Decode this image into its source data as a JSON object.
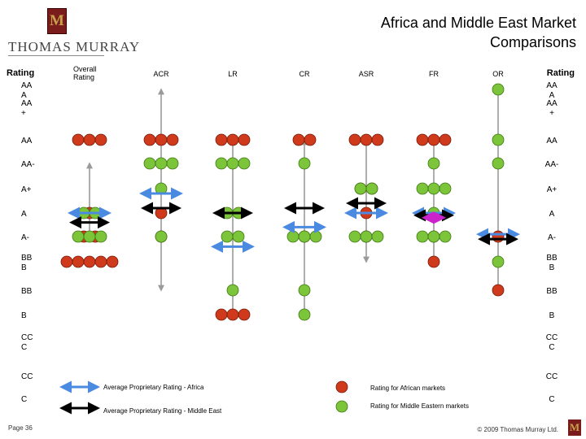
{
  "brand": {
    "monogram": "M",
    "name": "THOMAS MURRAY"
  },
  "header": {
    "title": "Africa and Middle East Market\nComparisons"
  },
  "footer": {
    "page": "Page 36",
    "copyright": "© 2009 Thomas Murray Ltd."
  },
  "colors": {
    "african": "#d03a1c",
    "middle_east": "#7cc43a",
    "africa_avg": "#4a8ae0",
    "me_avg": "#000000",
    "magenta": "#cc22cc",
    "gray_line": "#9a9a9a"
  },
  "chart_data": {
    "type": "scatter",
    "title": "Africa and Middle East Market Comparisons",
    "ylabel": "Rating",
    "categories": [
      {
        "label": "Overall\nRating"
      },
      {
        "label": "ACR"
      },
      {
        "label": "LR"
      },
      {
        "label": "CR"
      },
      {
        "label": "ASR"
      },
      {
        "label": "FR"
      },
      {
        "label": "OR"
      }
    ],
    "left_axis_header": "Rating",
    "right_axis_header": "Rating",
    "left_levels": [
      "AA\nA",
      "AA\n+",
      "AA",
      "AA-",
      "A+",
      "A",
      "A-",
      "BB\nB",
      "BB",
      "B",
      "CC\nC",
      "CC",
      "C"
    ],
    "right_levels": [
      "AA\nA",
      "AA\n+",
      "AA",
      "AA-",
      "A+",
      "A",
      "A-",
      "BB\nB",
      "BB",
      "B",
      "CC\nC",
      "CC",
      "C"
    ],
    "series": [
      {
        "name": "Rating for African markets",
        "points": [
          {
            "cat": 0,
            "level": 2,
            "count": 3
          },
          {
            "cat": 0,
            "level": 5,
            "count": 1
          },
          {
            "cat": 0,
            "level": 6,
            "count": 2
          },
          {
            "cat": 0,
            "level": 7,
            "count": 5
          },
          {
            "cat": 1,
            "level": 2,
            "count": 3
          },
          {
            "cat": 1,
            "level": 5,
            "count": 1
          },
          {
            "cat": 1,
            "level": 6,
            "count": 1
          },
          {
            "cat": 2,
            "level": 2,
            "count": 3
          },
          {
            "cat": 2,
            "level": 9,
            "count": 3
          },
          {
            "cat": 3,
            "level": 2,
            "count": 2
          },
          {
            "cat": 3,
            "level": 6,
            "count": 1
          },
          {
            "cat": 4,
            "level": 2,
            "count": 3
          },
          {
            "cat": 4,
            "level": 4,
            "count": 2
          },
          {
            "cat": 4,
            "level": 5,
            "count": 1
          },
          {
            "cat": 4,
            "level": 6,
            "count": 1
          },
          {
            "cat": 5,
            "level": 2,
            "count": 3
          },
          {
            "cat": 5,
            "level": 6,
            "count": 1
          },
          {
            "cat": 5,
            "level": 7,
            "count": 1
          },
          {
            "cat": 6,
            "level": 6,
            "count": 1
          },
          {
            "cat": 6,
            "level": 8,
            "count": 1
          }
        ]
      },
      {
        "name": "Rating for Middle Eastern markets",
        "points": [
          {
            "cat": 0,
            "level": 5,
            "count": 2
          },
          {
            "cat": 0,
            "level": 6,
            "count": 3
          },
          {
            "cat": 1,
            "level": 3,
            "count": 3
          },
          {
            "cat": 1,
            "level": 4,
            "count": 1
          },
          {
            "cat": 1,
            "level": 6,
            "count": 1
          },
          {
            "cat": 2,
            "level": 3,
            "count": 3
          },
          {
            "cat": 2,
            "level": 5,
            "count": 2
          },
          {
            "cat": 2,
            "level": 6,
            "count": 2
          },
          {
            "cat": 2,
            "level": 8,
            "count": 1
          },
          {
            "cat": 3,
            "level": 3,
            "count": 1
          },
          {
            "cat": 3,
            "level": 6,
            "count": 3
          },
          {
            "cat": 3,
            "level": 8,
            "count": 1
          },
          {
            "cat": 3,
            "level": 9,
            "count": 1
          },
          {
            "cat": 4,
            "level": 4,
            "count": 2
          },
          {
            "cat": 4,
            "level": 6,
            "count": 3
          },
          {
            "cat": 5,
            "level": 3,
            "count": 1
          },
          {
            "cat": 5,
            "level": 4,
            "count": 3
          },
          {
            "cat": 5,
            "level": 5,
            "count": 1
          },
          {
            "cat": 5,
            "level": 6,
            "count": 3
          },
          {
            "cat": 6,
            "level": 0,
            "count": 1
          },
          {
            "cat": 6,
            "level": 2,
            "count": 1
          },
          {
            "cat": 6,
            "level": 3,
            "count": 1
          },
          {
            "cat": 6,
            "level": 7,
            "count": 1
          }
        ]
      }
    ],
    "ranges": [
      {
        "cat": 0,
        "from": 6,
        "to": 3
      },
      {
        "cat": 1,
        "from": 8,
        "to": 0
      },
      {
        "cat": 2,
        "from": 9,
        "to": 2
      },
      {
        "cat": 3,
        "from": 9,
        "to": 2
      },
      {
        "cat": 4,
        "from": 7,
        "to": 2
      },
      {
        "cat": 5,
        "from": 7,
        "to": 2
      },
      {
        "cat": 6,
        "from": 8,
        "to": 0
      }
    ],
    "averages": [
      {
        "cat": 0,
        "africa": 5,
        "middle_east": 5.4
      },
      {
        "cat": 1,
        "africa": 4.2,
        "middle_east": 4.8
      },
      {
        "cat": 2,
        "africa": 6.4,
        "middle_east": 5
      },
      {
        "cat": 3,
        "africa": 5.6,
        "middle_east": 4.8
      },
      {
        "cat": 4,
        "africa": 5,
        "middle_east": 4.6
      },
      {
        "cat": 5,
        "africa": 5,
        "middle_east": 5.1,
        "extra": 5.2
      },
      {
        "cat": 6,
        "africa": 5.9,
        "middle_east": 6.1
      }
    ],
    "legend": {
      "africa_avg": "Average Proprietary Rating - Africa",
      "me_avg": "Average Proprietary Rating - Middle East",
      "african": "Rating for African markets",
      "middle_east": "Rating for Middle Eastern markets"
    }
  }
}
